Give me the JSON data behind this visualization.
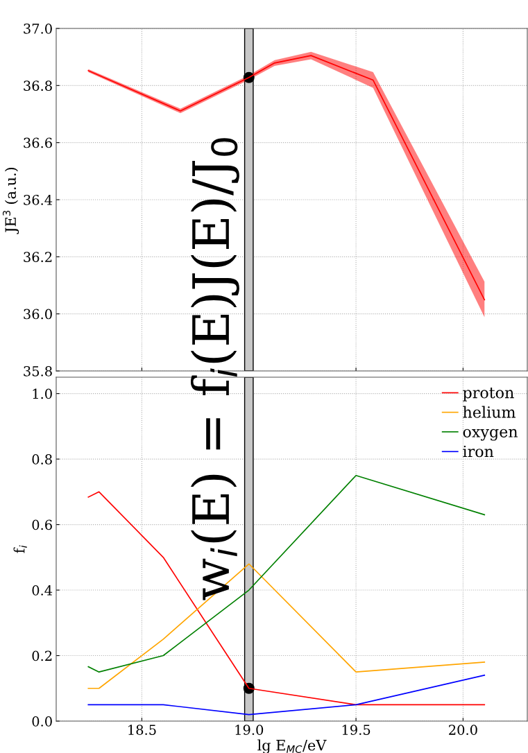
{
  "chart_data": [
    {
      "type": "line",
      "ylabel": "JE$^{3}$ (a.u.)",
      "xlim": [
        18.1,
        20.3
      ],
      "ylim": [
        35.8,
        37.0
      ],
      "yticks": [
        35.8,
        {
          "value": 36,
          "label": "36.0"
        },
        36.2,
        36.4,
        36.6,
        36.8,
        {
          "value": 37,
          "label": "37.0"
        }
      ],
      "grid": true,
      "tick_labels": "y",
      "series": [
        {
          "type": "line",
          "color": "#ff0000",
          "x": [
            18.25,
            18.68,
            19.0,
            19.12,
            19.29,
            19.58,
            20.1
          ],
          "values": [
            36.852,
            36.711,
            36.828,
            36.879,
            36.905,
            36.819,
            36.049
          ],
          "lower": [
            36.847,
            36.703,
            36.82,
            36.869,
            36.892,
            36.792,
            35.988
          ],
          "upper": [
            36.857,
            36.719,
            36.836,
            36.889,
            36.918,
            36.847,
            36.113
          ]
        },
        {
          "type": "scatter",
          "color": "#000000",
          "marker": "circle",
          "x": [
            19.0
          ],
          "values": [
            36.828
          ]
        }
      ],
      "bands": [
        {
          "axis": "x",
          "from": 18.98,
          "to": 19.02,
          "color": "#c8c8c8"
        }
      ]
    },
    {
      "type": "line",
      "xlabel": "lg E$_{MC}$/eV",
      "ylabel": "f$_{i}$",
      "xlim": [
        18.1,
        20.3
      ],
      "xticks": [
        18.5,
        {
          "value": 19,
          "label": "19.0"
        },
        19.5,
        {
          "value": 20,
          "label": "20.0"
        }
      ],
      "ylim": [
        0,
        1.05
      ],
      "yticks": [
        {
          "value": 0,
          "label": "0.0"
        },
        0.2,
        0.4,
        0.6,
        0.8,
        {
          "value": 1,
          "label": "1.0"
        }
      ],
      "grid": true,
      "legend": "top right",
      "x": [
        18.25,
        18.3,
        18.6,
        19.0,
        19.5,
        20.1
      ],
      "series": [
        {
          "name": "proton",
          "color": "#ff0000",
          "values": [
            0.684,
            0.7,
            0.5,
            0.1,
            0.05,
            0.05
          ]
        },
        {
          "name": "helium",
          "color": "#ffa500",
          "values": [
            0.1,
            0.1,
            0.25,
            0.48,
            0.15,
            0.18
          ]
        },
        {
          "name": "oxygen",
          "color": "#008000",
          "values": [
            0.166,
            0.15,
            0.2,
            0.4,
            0.75,
            0.63
          ]
        },
        {
          "name": "iron",
          "color": "#0000ff",
          "values": [
            0.05,
            0.05,
            0.05,
            0.02,
            0.05,
            0.14
          ]
        },
        {
          "type": "scatter",
          "color": "#000000",
          "marker": "circle",
          "x": [
            19.0
          ],
          "values": [
            0.1
          ]
        }
      ],
      "bands": [
        {
          "axis": "x",
          "from": 18.98,
          "to": 19.02,
          "color": "#c8c8c8"
        }
      ],
      "annotations": [
        "w$_{i}$(E) = f$_{i}$(E)J(E)/J$_{0}$"
      ]
    }
  ]
}
